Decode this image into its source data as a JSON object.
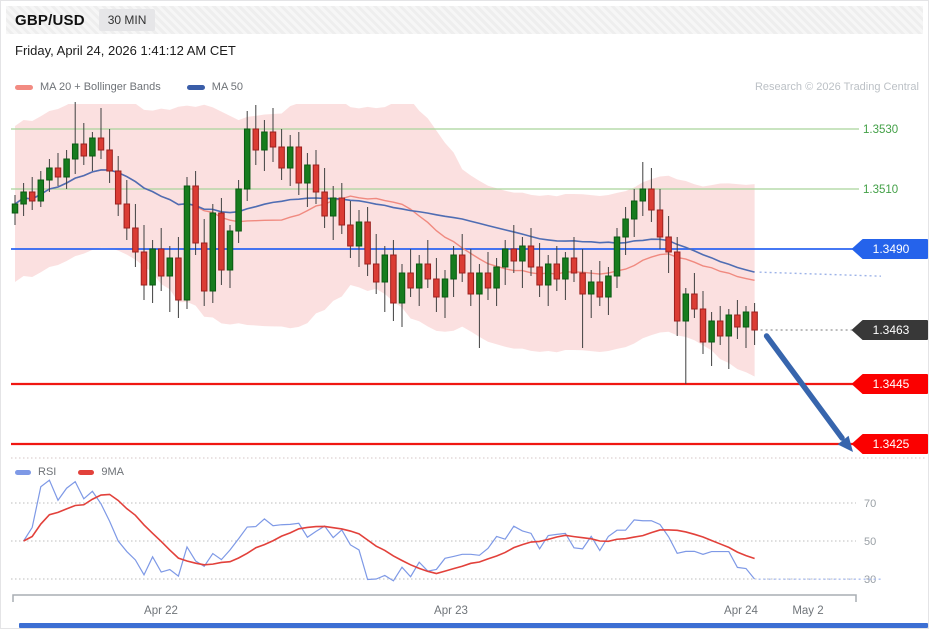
{
  "header": {
    "symbol": "GBP/USD",
    "interval": "30 MIN"
  },
  "datetime": "Friday, April 24, 2026 1:41:12 AM CET",
  "watermark": "Research © 2026 Trading Central",
  "legend_main": [
    {
      "label": "MA 20 + Bollinger Bands",
      "color": "#f28b82"
    },
    {
      "label": "MA 50",
      "color": "#3a5da8"
    }
  ],
  "legend_rsi": [
    {
      "label": "RSI",
      "color": "#7e99e6"
    },
    {
      "label": "9MA",
      "color": "#e2413b"
    }
  ],
  "chart_data": {
    "type": "candlestick",
    "symbol": "GBP/USD",
    "interval": "30 MIN",
    "y_range": [
      1.342,
      1.3542
    ],
    "grid": false,
    "candles": [
      [
        1.3502,
        1.3508,
        1.3498,
        1.3505
      ],
      [
        1.3505,
        1.3512,
        1.3501,
        1.3509
      ],
      [
        1.3509,
        1.3514,
        1.3503,
        1.3506
      ],
      [
        1.3506,
        1.3516,
        1.3504,
        1.3513
      ],
      [
        1.3513,
        1.352,
        1.3509,
        1.3517
      ],
      [
        1.3517,
        1.3522,
        1.3511,
        1.3514
      ],
      [
        1.3514,
        1.3523,
        1.351,
        1.352
      ],
      [
        1.352,
        1.3539,
        1.3515,
        1.3525
      ],
      [
        1.3525,
        1.3532,
        1.3518,
        1.3521
      ],
      [
        1.3521,
        1.3529,
        1.3516,
        1.3527
      ],
      [
        1.3527,
        1.3537,
        1.352,
        1.3523
      ],
      [
        1.3523,
        1.353,
        1.3512,
        1.3516
      ],
      [
        1.3516,
        1.3521,
        1.3501,
        1.3505
      ],
      [
        1.3505,
        1.3513,
        1.3493,
        1.3497
      ],
      [
        1.3497,
        1.3505,
        1.3484,
        1.3489
      ],
      [
        1.3489,
        1.3498,
        1.3473,
        1.3478
      ],
      [
        1.3478,
        1.3493,
        1.3472,
        1.349
      ],
      [
        1.349,
        1.3497,
        1.3476,
        1.3481
      ],
      [
        1.3481,
        1.3491,
        1.3469,
        1.3487
      ],
      [
        1.3487,
        1.3494,
        1.3467,
        1.3473
      ],
      [
        1.3473,
        1.3514,
        1.347,
        1.3511
      ],
      [
        1.3511,
        1.3516,
        1.3488,
        1.3492
      ],
      [
        1.3492,
        1.35,
        1.3471,
        1.3476
      ],
      [
        1.3476,
        1.3505,
        1.3472,
        1.3502
      ],
      [
        1.3502,
        1.3507,
        1.3478,
        1.3483
      ],
      [
        1.3483,
        1.3498,
        1.3477,
        1.3496
      ],
      [
        1.3496,
        1.3513,
        1.3492,
        1.351
      ],
      [
        1.351,
        1.3536,
        1.3506,
        1.353
      ],
      [
        1.353,
        1.3538,
        1.3518,
        1.3523
      ],
      [
        1.3523,
        1.3533,
        1.3516,
        1.3529
      ],
      [
        1.3529,
        1.3537,
        1.3519,
        1.3524
      ],
      [
        1.3524,
        1.353,
        1.3513,
        1.3517
      ],
      [
        1.3517,
        1.3528,
        1.3511,
        1.3524
      ],
      [
        1.3524,
        1.3529,
        1.3508,
        1.3512
      ],
      [
        1.3512,
        1.3522,
        1.3504,
        1.3518
      ],
      [
        1.3518,
        1.3523,
        1.3505,
        1.3509
      ],
      [
        1.3509,
        1.3517,
        1.3497,
        1.3501
      ],
      [
        1.3501,
        1.3511,
        1.3493,
        1.3507
      ],
      [
        1.3507,
        1.3512,
        1.3495,
        1.3498
      ],
      [
        1.3498,
        1.3506,
        1.3487,
        1.3491
      ],
      [
        1.3491,
        1.3503,
        1.3484,
        1.3499
      ],
      [
        1.3499,
        1.3504,
        1.3481,
        1.3485
      ],
      [
        1.3485,
        1.3495,
        1.3475,
        1.3479
      ],
      [
        1.3479,
        1.3491,
        1.3469,
        1.3488
      ],
      [
        1.3488,
        1.3493,
        1.3466,
        1.3472
      ],
      [
        1.3472,
        1.3485,
        1.3464,
        1.3482
      ],
      [
        1.3482,
        1.349,
        1.3474,
        1.3477
      ],
      [
        1.3477,
        1.3488,
        1.3471,
        1.3485
      ],
      [
        1.3485,
        1.3493,
        1.3477,
        1.348
      ],
      [
        1.348,
        1.3487,
        1.3469,
        1.3474
      ],
      [
        1.3474,
        1.3483,
        1.3467,
        1.348
      ],
      [
        1.348,
        1.3491,
        1.3474,
        1.3488
      ],
      [
        1.3488,
        1.3495,
        1.3479,
        1.3482
      ],
      [
        1.3482,
        1.349,
        1.3471,
        1.3475
      ],
      [
        1.3475,
        1.3485,
        1.3457,
        1.3482
      ],
      [
        1.3482,
        1.3489,
        1.3473,
        1.3477
      ],
      [
        1.3477,
        1.3487,
        1.3471,
        1.3484
      ],
      [
        1.3484,
        1.3493,
        1.3478,
        1.349
      ],
      [
        1.349,
        1.3498,
        1.3482,
        1.3486
      ],
      [
        1.3486,
        1.3494,
        1.3477,
        1.3491
      ],
      [
        1.3491,
        1.3497,
        1.3481,
        1.3484
      ],
      [
        1.3484,
        1.3492,
        1.3474,
        1.3478
      ],
      [
        1.3478,
        1.3488,
        1.3471,
        1.3485
      ],
      [
        1.3485,
        1.3491,
        1.3476,
        1.348
      ],
      [
        1.348,
        1.3489,
        1.3473,
        1.3487
      ],
      [
        1.3487,
        1.3494,
        1.3479,
        1.3482
      ],
      [
        1.3482,
        1.349,
        1.3457,
        1.3475
      ],
      [
        1.3475,
        1.3483,
        1.3467,
        1.3479
      ],
      [
        1.3479,
        1.3486,
        1.3471,
        1.3474
      ],
      [
        1.3474,
        1.3484,
        1.3468,
        1.3481
      ],
      [
        1.3481,
        1.3497,
        1.3477,
        1.3494
      ],
      [
        1.3494,
        1.3504,
        1.3488,
        1.35
      ],
      [
        1.35,
        1.351,
        1.3494,
        1.3506
      ],
      [
        1.3506,
        1.3519,
        1.3501,
        1.351
      ],
      [
        1.351,
        1.3517,
        1.3499,
        1.3503
      ],
      [
        1.3503,
        1.351,
        1.349,
        1.3494
      ],
      [
        1.3494,
        1.3501,
        1.3482,
        1.3489
      ],
      [
        1.3489,
        1.3494,
        1.3461,
        1.3466
      ],
      [
        1.3466,
        1.3477,
        1.3445,
        1.3475
      ],
      [
        1.3475,
        1.3482,
        1.3467,
        1.347
      ],
      [
        1.347,
        1.3476,
        1.3455,
        1.3459
      ],
      [
        1.3459,
        1.3469,
        1.3451,
        1.3466
      ],
      [
        1.3466,
        1.3471,
        1.3458,
        1.3461
      ],
      [
        1.3461,
        1.347,
        1.345,
        1.3468
      ],
      [
        1.3468,
        1.3473,
        1.346,
        1.3464
      ],
      [
        1.3464,
        1.3471,
        1.3457,
        1.3469
      ],
      [
        1.3469,
        1.3472,
        1.3458,
        1.3463
      ]
    ],
    "overlays": [
      {
        "name": "MA20",
        "period": 20,
        "color": "#f08a80"
      },
      {
        "name": "Bollinger Bands",
        "period": 20,
        "stdev": 2,
        "fill_color": "rgba(244,160,160,0.32)"
      },
      {
        "name": "MA50",
        "period": 50,
        "color": "#4f6db3"
      }
    ],
    "levels": [
      {
        "price": 1.353,
        "label": "1.3530",
        "kind": "resistance",
        "line": "solid",
        "line_color": "#a9d49b",
        "text_color": "#43a047",
        "badge_color": null
      },
      {
        "price": 1.351,
        "label": "1.3510",
        "kind": "resistance",
        "line": "solid",
        "line_color": "#a9d49b",
        "text_color": "#43a047",
        "badge_color": null
      },
      {
        "price": 1.349,
        "label": "1.3490",
        "kind": "pivot",
        "line": "solid",
        "line_color": "#2b64f3",
        "text_color": "#ffffff",
        "badge_color": "#2563eb"
      },
      {
        "price": 1.3463,
        "label": "1.3463",
        "kind": "last_price",
        "line": "dotted",
        "line_color": "#a6a6a6",
        "text_color": "#ffffff",
        "badge_color": "#383838"
      },
      {
        "price": 1.3445,
        "label": "1.3445",
        "kind": "support",
        "line": "solid",
        "line_color": "#f01712",
        "text_color": "#ffffff",
        "badge_color": "#fb0000"
      },
      {
        "price": 1.3425,
        "label": "1.3425",
        "kind": "support",
        "line": "solid",
        "line_color": "#f01712",
        "text_color": "#ffffff",
        "badge_color": "#fb0000"
      }
    ],
    "projection_arrow": {
      "from_price": 1.3461,
      "to_price": 1.3428,
      "color": "#3765ad"
    },
    "rsi": {
      "period": 14,
      "ma_period": 9,
      "grid": [
        70,
        50,
        30
      ],
      "line_color": "#7e99e6",
      "ma_color": "#e2413b"
    },
    "x_ticks": [
      "Apr 22",
      "Apr 23",
      "Apr 24",
      "May 2"
    ]
  }
}
